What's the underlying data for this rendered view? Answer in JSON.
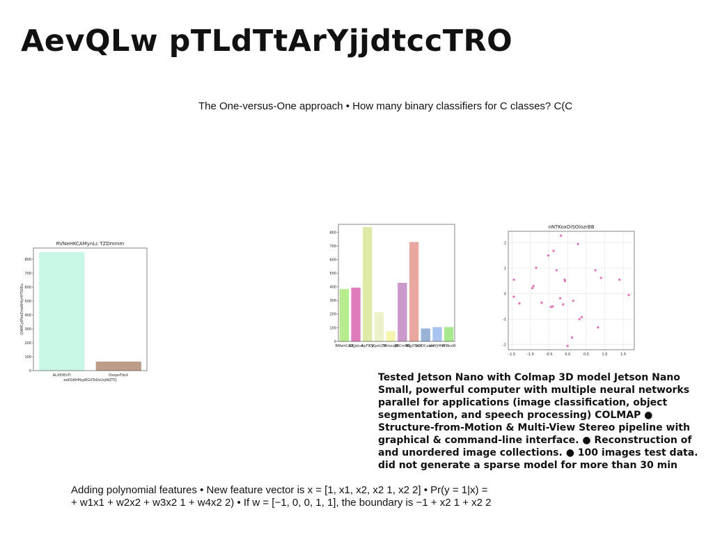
{
  "slide": {
    "title": "AevQLw pTLdTtArYjjdtccTRO",
    "subtitle": "The One-versus-One approach • How many binary classifiers for C classes? C(C",
    "jetson_text": "Tested Jetson Nano with Colmap 3D model Jetson Nano Small, powerful computer with multiple neural networks parallel for applications (image classification, object segmentation, and speech processing) COLMAP ● Structure-from-Motion & Multi-View Stereo pipeline with graphical & command-line interface. ● Reconstruction of and unordered image collections. ● 100 images test data. did not generate a sparse model for more than 30 min",
    "poly_line1": "Adding polynomial features • New feature vector is x = [1, x1, x2, x2 1, x2 2] • Pr(y = 1|x) =",
    "poly_line2": "+ w1x1 + w2x2 + w3x2 1 + w4x2 2) • If w = [−1, 0, 0, 1, 1], the boundary is −1 + x2 1 + x2 2"
  },
  "chart_data": [
    {
      "type": "bar",
      "title": "RVNeHKCAMynLc TZDmmm",
      "xlabel": "exKQAHMypEGXToDsUvJWZTQ",
      "ylabel": "QWIfCyIPbkZmoKHIyHYTIDEu",
      "categories": [
        "ALXfOEvTI",
        "DxzpoTdsX"
      ],
      "values": [
        850,
        65
      ],
      "colors": [
        "#c8f7e6",
        "#bd9c8a"
      ],
      "ylim": [
        0,
        880
      ],
      "yticks": [
        0,
        100,
        200,
        300,
        400,
        500,
        600,
        700,
        800
      ]
    },
    {
      "type": "bar",
      "title": "",
      "categories": [
        "RMwhCAQ",
        "GRJjeluk",
        "ApFIEV",
        "JKpsUZM",
        "VctonqB",
        "BBCmNQ",
        "fRgXTonY",
        "KDDCowm",
        "UrfYjHHN",
        "kYBkxW"
      ],
      "values": [
        385,
        395,
        840,
        215,
        75,
        430,
        730,
        95,
        105,
        105
      ],
      "colors": [
        "#b8ed8f",
        "#e07bbb",
        "#dfe9a8",
        "#edf2c8",
        "#f5f5b0",
        "#cc99cc",
        "#e8a8a0",
        "#99b3d6",
        "#a8c4ef",
        "#a8e88f"
      ],
      "ylim": [
        0,
        860
      ],
      "yticks": [
        0,
        100,
        200,
        300,
        400,
        500,
        600,
        700,
        800
      ]
    },
    {
      "type": "scatter",
      "title": "nNTKoxDiSOlozrBB",
      "color": "#e07bbb",
      "xlim": [
        -1.6,
        1.8
      ],
      "ylim": [
        -2.2,
        2.45
      ],
      "xticks": [
        -1.5,
        -1.0,
        -0.5,
        0.0,
        0.5,
        1.0,
        1.5
      ],
      "yticks": [
        -2,
        -1,
        0,
        1,
        2
      ],
      "points": [
        [
          -1.45,
          0.55
        ],
        [
          -1.45,
          -0.12
        ],
        [
          -1.3,
          -0.38
        ],
        [
          -0.95,
          0.22
        ],
        [
          -0.92,
          0.3
        ],
        [
          -0.85,
          1.02
        ],
        [
          -0.7,
          -0.35
        ],
        [
          -0.52,
          1.5
        ],
        [
          -0.45,
          -0.52
        ],
        [
          -0.4,
          -0.5
        ],
        [
          -0.38,
          1.68
        ],
        [
          -0.3,
          0.92
        ],
        [
          -0.2,
          -0.18
        ],
        [
          -0.18,
          2.28
        ],
        [
          -0.12,
          -0.42
        ],
        [
          -0.08,
          0.55
        ],
        [
          -0.07,
          0.5
        ],
        [
          0.0,
          -2.05
        ],
        [
          0.12,
          -1.72
        ],
        [
          0.15,
          -0.28
        ],
        [
          0.28,
          1.95
        ],
        [
          0.32,
          -1.0
        ],
        [
          0.38,
          -0.92
        ],
        [
          0.75,
          0.92
        ],
        [
          0.82,
          -1.32
        ],
        [
          0.9,
          0.62
        ],
        [
          1.4,
          0.55
        ],
        [
          1.65,
          -0.05
        ]
      ]
    }
  ]
}
